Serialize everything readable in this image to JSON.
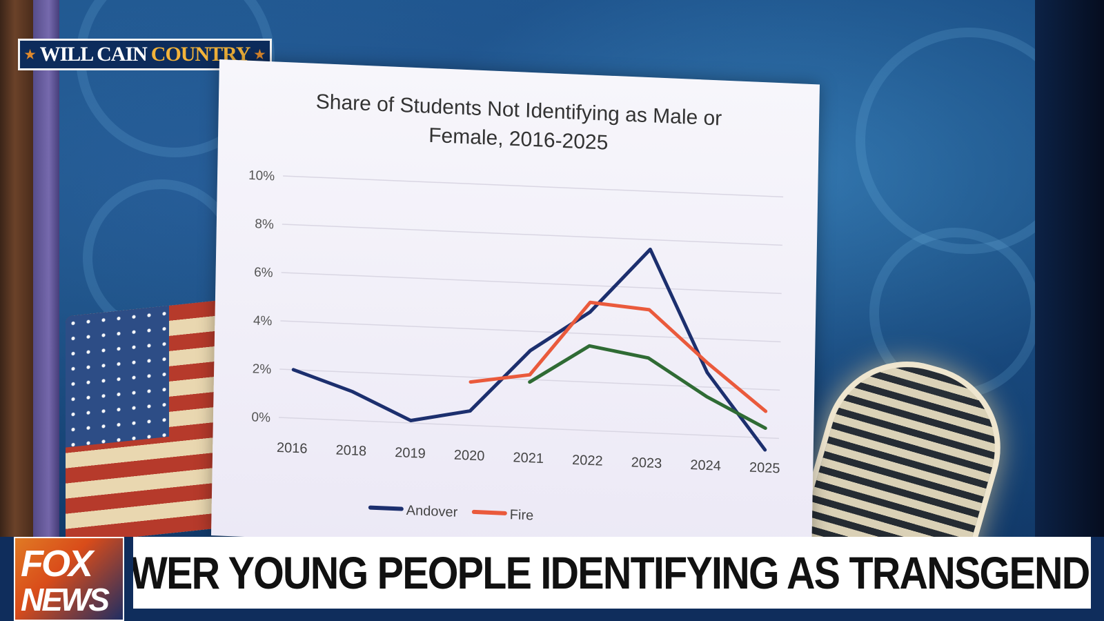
{
  "show_logo": {
    "part1": "WILL CAIN",
    "part2": "COUNTRY",
    "star": "★"
  },
  "chyron": {
    "network_line1": "FOX",
    "network_line2": "NEWS",
    "headline": "FEWER YOUNG PEOPLE IDENTIFYING AS TRANSGENDER"
  },
  "chart_data": {
    "type": "line",
    "title": "Share of Students Not Identifying as Male or Female, 2016-2025",
    "title_lines": [
      "Share of Students Not Identifying as Male or",
      "Female, 2016-2025"
    ],
    "categories": [
      "2016",
      "2018",
      "2019",
      "2020",
      "2021",
      "2022",
      "2023",
      "2024",
      "2025"
    ],
    "y_ticks": [
      "0%",
      "2%",
      "4%",
      "6%",
      "8%",
      "10%"
    ],
    "ylim": [
      0,
      10
    ],
    "grid": true,
    "legend_position": "bottom",
    "series": [
      {
        "name": "Andover",
        "color": "#1c2f6e",
        "values": [
          2.0,
          1.2,
          0.1,
          0.6,
          3.2,
          4.9,
          7.6,
          2.6,
          -0.5
        ]
      },
      {
        "name": "Fire",
        "color": "#ea5a3c",
        "values": [
          null,
          null,
          null,
          1.8,
          2.2,
          5.3,
          5.1,
          3.0,
          1.1
        ]
      },
      {
        "name": "",
        "color": "#2f6b34",
        "values": [
          null,
          null,
          null,
          null,
          1.9,
          3.5,
          3.1,
          1.6,
          0.4
        ]
      }
    ]
  }
}
